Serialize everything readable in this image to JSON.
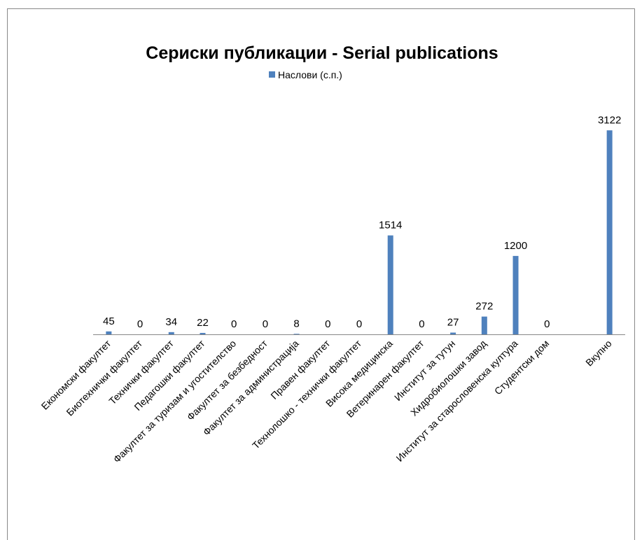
{
  "chart_data": {
    "type": "bar",
    "title": "Сериски публикации - Serial publications",
    "categories": [
      "Економски факултет",
      "Биотехнички факултет",
      "Технички факултет",
      "Педагошки факултет",
      "Факултет за туризам и угостителство",
      "Факултет за безбедност",
      "Факултет за администрација",
      "Правен факултет",
      "Технолошко - технички факултет",
      "Висока медицинска",
      "Ветеринарен факултет",
      "Институт за тутун",
      "Хидробиолошки завод",
      "Институт за старословенска култура",
      "Студентски дом",
      null,
      "Вкупно"
    ],
    "series": [
      {
        "name": "Наслови (с.п.)",
        "color": "#4f81bd",
        "values": [
          45,
          0,
          34,
          22,
          0,
          0,
          8,
          0,
          0,
          1514,
          0,
          27,
          272,
          1200,
          0,
          null,
          3122
        ]
      }
    ],
    "ylim": [
      0,
      3500
    ],
    "legend": "top",
    "data_labels": true
  }
}
